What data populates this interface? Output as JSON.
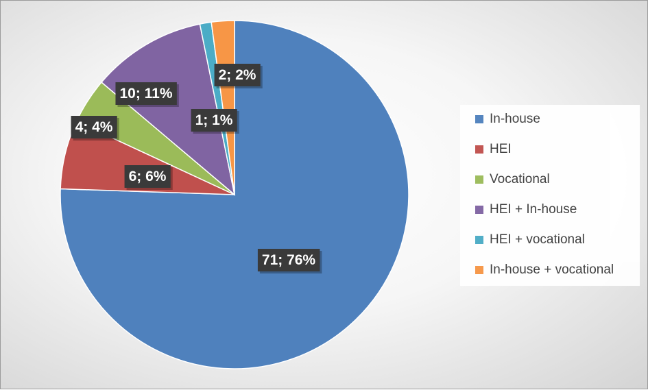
{
  "chart_data": {
    "type": "pie",
    "slices": [
      {
        "name": "In-house",
        "value": 71,
        "percent": 76,
        "label": "71; 76%",
        "color": "#4f81bd"
      },
      {
        "name": "HEI",
        "value": 6,
        "percent": 6,
        "label": "6; 6%",
        "color": "#c0504d"
      },
      {
        "name": "Vocational",
        "value": 4,
        "percent": 4,
        "label": "4; 4%",
        "color": "#9bbb59"
      },
      {
        "name": "HEI + In-house",
        "value": 10,
        "percent": 11,
        "label": "10; 11%",
        "color": "#8064a2"
      },
      {
        "name": "HEI + vocational",
        "value": 1,
        "percent": 1,
        "label": "1; 1%",
        "color": "#4bacc6"
      },
      {
        "name": "In-house + vocational",
        "value": 2,
        "percent": 2,
        "label": "2; 2%",
        "color": "#f79646"
      }
    ],
    "legend_position": "right"
  }
}
